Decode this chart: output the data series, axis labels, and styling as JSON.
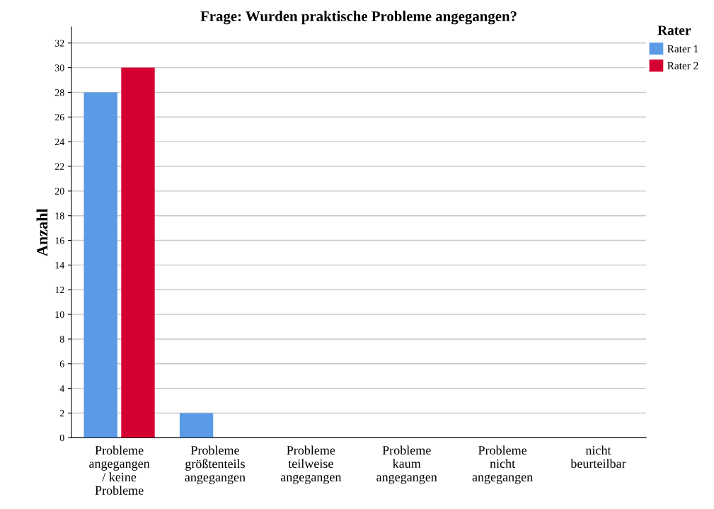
{
  "chart_data": {
    "type": "bar",
    "title": "Frage: Wurden praktische Probleme angegangen?",
    "ylabel": "Anzahl",
    "legend_title": "Rater",
    "categories": [
      "Probleme\nangegangen\n/ keine\nProbleme",
      "Probleme\ngrößtenteils\nangegangen",
      "Probleme\nteilweise\nangegangen",
      "Probleme\nkaum\nangegangen",
      "Probleme\nnicht\nangegangen",
      "nicht\nbeurteilbar"
    ],
    "series": [
      {
        "name": "Rater 1",
        "color": "#5b9be6",
        "values": [
          28,
          2,
          0,
          0,
          0,
          0
        ]
      },
      {
        "name": "Rater 2",
        "color": "#d50032",
        "values": [
          30,
          0,
          0,
          0,
          0,
          0
        ]
      }
    ],
    "ylim": [
      0,
      33.3
    ],
    "yticks": [
      0,
      2,
      4,
      6,
      8,
      10,
      12,
      14,
      16,
      18,
      20,
      22,
      24,
      26,
      28,
      30,
      32
    ],
    "grid": "y",
    "legend": "top right"
  }
}
